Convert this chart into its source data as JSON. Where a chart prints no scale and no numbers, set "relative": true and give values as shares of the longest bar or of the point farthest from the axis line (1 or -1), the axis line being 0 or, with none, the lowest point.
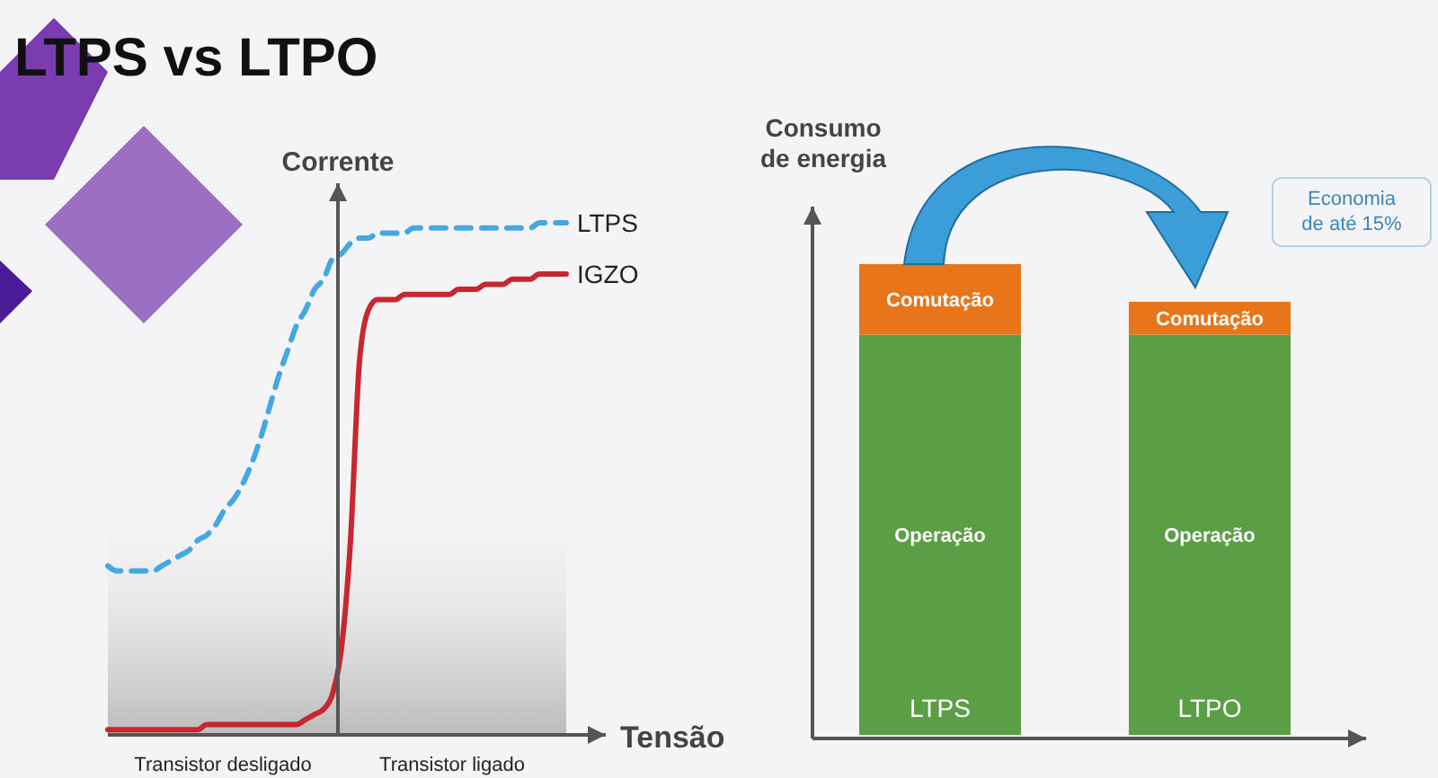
{
  "chart_data": [
    {
      "type": "line",
      "title": "LTPS vs LTPO",
      "xlabel": "Tensão",
      "ylabel": "Corrente",
      "relative": true,
      "legend": false,
      "marker": "none",
      "categories": [
        null,
        null,
        null,
        null,
        null,
        null,
        null,
        null,
        null,
        null,
        null,
        null,
        null,
        null,
        null,
        null,
        null,
        null,
        null,
        null,
        null,
        null,
        null,
        null,
        null,
        null,
        null,
        null,
        null,
        null,
        null,
        null,
        null,
        null,
        null,
        null,
        null,
        null,
        null,
        null,
        null,
        null,
        null,
        null,
        null,
        null,
        null,
        null,
        null,
        null,
        null,
        null
      ],
      "series": [
        {
          "name": "LTPS",
          "color": "#45a8e0",
          "line_style": "dashed",
          "values": [
            0.33,
            0.32,
            0.32,
            0.32,
            0.32,
            0.32,
            0.33,
            0.34,
            0.35,
            0.36,
            0.38,
            0.39,
            0.41,
            0.44,
            0.46,
            0.49,
            0.53,
            0.58,
            0.64,
            0.7,
            0.75,
            0.8,
            0.83,
            0.87,
            0.89,
            0.93,
            0.94,
            0.96,
            0.97,
            0.97,
            0.98,
            0.98,
            0.98,
            0.98,
            0.99,
            0.99,
            0.99,
            0.99,
            0.99,
            0.99,
            0.99,
            0.99,
            0.99,
            0.99,
            0.99,
            0.99,
            0.99,
            0.99,
            1,
            1,
            1,
            1
          ]
        },
        {
          "name": "IGZO",
          "color": "#c8272f",
          "line_style": "solid",
          "values": [
            0.01,
            0.01,
            0.01,
            0.01,
            0.01,
            0.01,
            0.01,
            0.01,
            0.01,
            0.01,
            0.01,
            0.02,
            0.02,
            0.02,
            0.02,
            0.02,
            0.02,
            0.02,
            0.02,
            0.02,
            0.02,
            0.02,
            0.03,
            0.04,
            0.05,
            0.08,
            0.17,
            0.38,
            0.73,
            0.83,
            0.85,
            0.85,
            0.85,
            0.86,
            0.86,
            0.86,
            0.86,
            0.86,
            0.86,
            0.87,
            0.87,
            0.87,
            0.88,
            0.88,
            0.88,
            0.89,
            0.89,
            0.89,
            0.9,
            0.9,
            0.9,
            0.9
          ]
        }
      ],
      "annotations": [
        "Transistor desligado",
        "Transistor ligado"
      ]
    },
    {
      "type": "bar",
      "ylabel": "Consumo de energia",
      "relative": true,
      "stacked": true,
      "legend": false,
      "categories": [
        "LTPS",
        "LTPO"
      ],
      "series": [
        {
          "name": "Operação",
          "color": "#5a9e46",
          "values": [
            0.85,
            0.85
          ]
        },
        {
          "name": "Comutação",
          "color": "#e8751a",
          "values": [
            0.15,
            0.07
          ]
        }
      ],
      "annotations": [
        "Economia de até 15%"
      ]
    }
  ]
}
